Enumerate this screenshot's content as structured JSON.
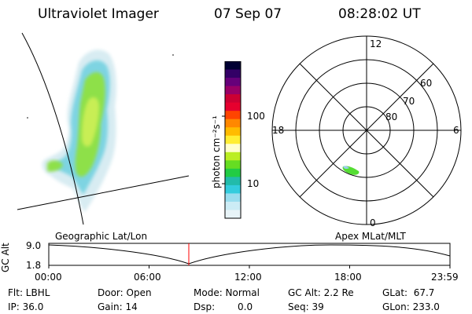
{
  "header": {
    "instrument": "Ultraviolet Imager",
    "date": "07 Sep 07",
    "time": "08:28:02 UT"
  },
  "colorbar": {
    "label": "photon cm⁻²s⁻¹",
    "ticks": [
      "100",
      "10"
    ],
    "colors": [
      "#000033",
      "#330066",
      "#66007a",
      "#990066",
      "#cc0033",
      "#e6002e",
      "#ff4400",
      "#ff8800",
      "#ffbb00",
      "#ffee33",
      "#ffffcc",
      "#bbee22",
      "#66dd22",
      "#22cc44",
      "#22bbaa",
      "#33ccdd",
      "#99ddee",
      "#ccecf5",
      "#e8f4f8"
    ]
  },
  "polar": {
    "mlt_labels": {
      "top": "12",
      "left": "18",
      "right": "6",
      "bottom": "0"
    },
    "lat_labels": [
      "60",
      "70",
      "80"
    ]
  },
  "altitude_plot": {
    "ylabel": "GC Alt",
    "yticks": [
      "9.0",
      "1.8"
    ],
    "left_label": "Geographic Lat/Lon",
    "right_label": "Apex MLat/MLT",
    "xticks": [
      "00:00",
      "06:00",
      "12:00",
      "18:00",
      "23:59"
    ],
    "marker_color": "#ff0000"
  },
  "status": {
    "filter": "Flt: LBHL",
    "ip": "IP: 36.0",
    "door": "Door: Open",
    "gain": "Gain: 14",
    "mode": "Mode: Normal",
    "dsp_label": "Dsp:",
    "dsp_value": "0.0",
    "gc_alt": "GC Alt: 2.2 Re",
    "seq": "Seq: 39",
    "glat": "GLat:  67.7",
    "glon": "GLon: 233.0"
  }
}
